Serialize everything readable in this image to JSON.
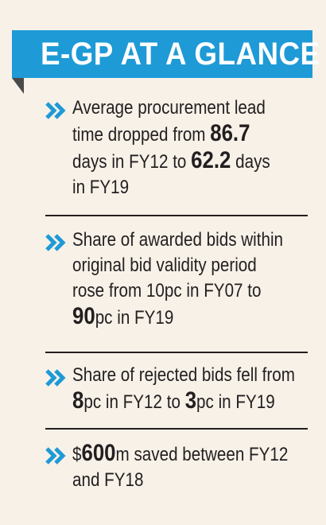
{
  "header": {
    "title": "E-GP AT A GLANCE"
  },
  "colors": {
    "accent": "#1e9ad6",
    "background": "#f7f1e8",
    "text": "#231f20"
  },
  "icons": {
    "bullet": "double-chevron-right-icon"
  },
  "items": [
    {
      "lines": [
        [
          {
            "t": "Average procurement lead",
            "b": false
          }
        ],
        [
          {
            "t": "time dropped from ",
            "b": false
          },
          {
            "t": "86.7",
            "b": true
          }
        ],
        [
          {
            "t": "days in FY12 to ",
            "b": false
          },
          {
            "t": "62.2",
            "b": true
          },
          {
            "t": " days",
            "b": false
          }
        ],
        [
          {
            "t": "in FY19",
            "b": false
          }
        ]
      ]
    },
    {
      "lines": [
        [
          {
            "t": "Share of awarded bids within",
            "b": false
          }
        ],
        [
          {
            "t": "original bid validity period",
            "b": false
          }
        ],
        [
          {
            "t": "rose from 10pc in FY07 to",
            "b": false
          }
        ],
        [
          {
            "t": "90",
            "b": true
          },
          {
            "t": "pc in FY19",
            "b": false
          }
        ]
      ]
    },
    {
      "lines": [
        [
          {
            "t": "Share of rejected bids fell from",
            "b": false
          }
        ],
        [
          {
            "t": "8",
            "b": true
          },
          {
            "t": "pc in FY12 to ",
            "b": false
          },
          {
            "t": "3",
            "b": true
          },
          {
            "t": "pc in FY19",
            "b": false
          }
        ]
      ]
    },
    {
      "lines": [
        [
          {
            "t": "$",
            "b": false
          },
          {
            "t": "600",
            "b": true
          },
          {
            "t": "m saved between FY12",
            "b": false
          }
        ],
        [
          {
            "t": "and FY18",
            "b": false
          }
        ]
      ]
    }
  ]
}
